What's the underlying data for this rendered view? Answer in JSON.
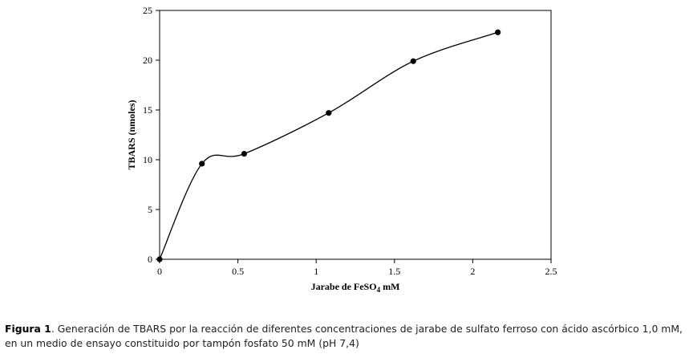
{
  "chart_data": {
    "type": "line",
    "xlabel_main": "Jarabe de FeSO",
    "xlabel_sub": "4",
    "xlabel_unit": " mM",
    "ylabel": "TBARS (nmoles)",
    "xlim": [
      0,
      2.5
    ],
    "ylim": [
      0,
      25
    ],
    "xticks": [
      "0",
      "0.5",
      "1",
      "1.5",
      "2",
      "2.5"
    ],
    "yticks": [
      "0",
      "5",
      "10",
      "15",
      "20",
      "25"
    ],
    "x": [
      0,
      0.27,
      0.54,
      1.08,
      1.62,
      2.16
    ],
    "y": [
      0,
      9.6,
      10.6,
      14.7,
      19.9,
      22.8
    ],
    "smooth": true,
    "grid": false
  },
  "caption": {
    "label": "Figura 1",
    "text": ". Generación de TBARS por la reacción de diferentes concentraciones de jarabe de sulfato ferroso con ácido ascórbico 1,0 mM, en un medio de ensayo constituido por tampón fosfato 50 mM (pH 7,4)"
  }
}
